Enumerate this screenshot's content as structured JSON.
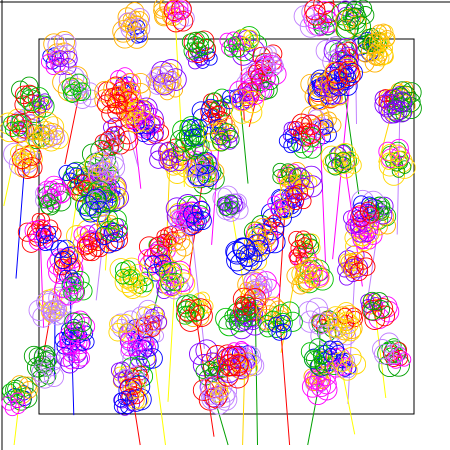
{
  "palette": [
    "#ff0000",
    "#0000ff",
    "#00a000",
    "#ffd700",
    "#ff00ff",
    "#ffb000",
    "#8000ff",
    "#c080ff",
    "#00c000"
  ],
  "lines": {
    "colors": [
      "#ffff00",
      "#ff0000",
      "#0000ff",
      "#00a000",
      "#ff00ff",
      "#c080ff",
      "#ffd700"
    ]
  },
  "clusters": {
    "count": 110,
    "petals_per_flower": 4,
    "flowers_per_cluster": 5
  }
}
